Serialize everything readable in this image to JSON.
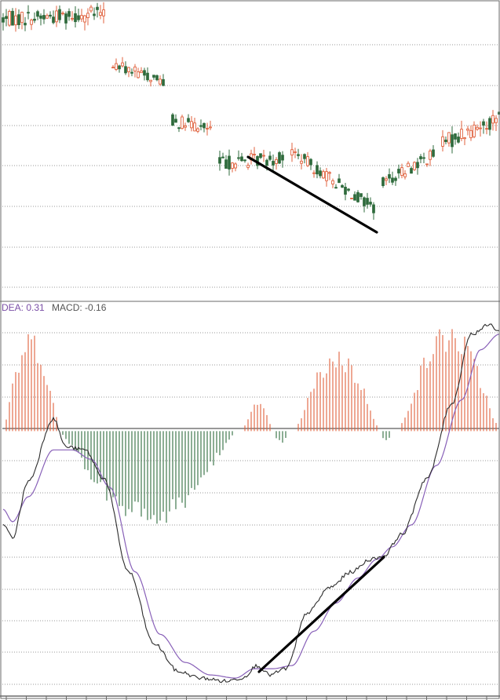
{
  "colors": {
    "background": "#ffffff",
    "frame": "#6a6a6a",
    "grid": "#9a9a9a",
    "up": "#e0603c",
    "down": "#2f6b3c",
    "dif_line": "#2b2b2b",
    "dea_line": "#8860b8",
    "legend_text": "#7a4ea6",
    "trend_line": "#000000"
  },
  "legend": {
    "dea": "DEA: 0.31",
    "macd": "MACD: -0.16"
  },
  "chart_data": [
    {
      "type": "candlestick",
      "title": "",
      "grid": true,
      "segments": [
        {
          "count": 33,
          "base": 96,
          "end": 98,
          "wiggle": 1.2
        },
        {
          "count": 17,
          "base": 80,
          "end": 74,
          "wiggle": 0.9
        },
        {
          "count": 13,
          "base": 60,
          "end": 57,
          "wiggle": 1.0
        },
        {
          "count": 21,
          "base": 45,
          "end": 47,
          "wiggle": 1.1
        },
        {
          "count": 27,
          "base": 49,
          "end": 29,
          "wiggle": 1.0
        },
        {
          "count": 17,
          "base": 38,
          "end": 48,
          "wiggle": 1.0
        },
        {
          "count": 28,
          "base": 52,
          "end": 66,
          "wiggle": 1.3
        }
      ],
      "ylim": [
        0,
        100
      ]
    },
    {
      "type": "bar+line",
      "title": "",
      "grid": true,
      "series": [
        {
          "name": "DEA",
          "line": "dea"
        },
        {
          "name": "MACD",
          "line": "dif"
        }
      ],
      "macd_histogram_peaks": [
        {
          "start": 0,
          "end": 18,
          "peak": 2.8
        },
        {
          "start": 18,
          "end": 74,
          "peak": -2.8
        },
        {
          "start": 76,
          "end": 86,
          "peak": 0.8
        },
        {
          "start": 86,
          "end": 91,
          "peak": -0.35
        },
        {
          "start": 93,
          "end": 120,
          "peak": 2.3
        },
        {
          "start": 120,
          "end": 124,
          "peak": -0.3
        },
        {
          "start": 126,
          "end": 158,
          "peak": 3.0
        }
      ],
      "dif_knots": [
        [
          0,
          -3.0
        ],
        [
          3,
          -3.4
        ],
        [
          8,
          -1.6
        ],
        [
          16,
          0.4
        ],
        [
          20,
          -0.5
        ],
        [
          26,
          -0.6
        ],
        [
          32,
          -1.5
        ],
        [
          40,
          -4.5
        ],
        [
          48,
          -6.8
        ],
        [
          56,
          -7.7
        ],
        [
          63,
          -7.9
        ],
        [
          71,
          -8.0
        ],
        [
          76,
          -7.9
        ],
        [
          81,
          -7.5
        ],
        [
          85,
          -7.8
        ],
        [
          90,
          -7.6
        ],
        [
          97,
          -5.8
        ],
        [
          104,
          -5.0
        ],
        [
          111,
          -4.5
        ],
        [
          117,
          -4.1
        ],
        [
          121,
          -4.0
        ],
        [
          127,
          -3.3
        ],
        [
          135,
          -1.5
        ],
        [
          143,
          0.9
        ],
        [
          149,
          3.1
        ],
        [
          155,
          3.4
        ],
        [
          158,
          3.2
        ]
      ],
      "dea_knots": [
        [
          0,
          -2.5
        ],
        [
          3,
          -2.9
        ],
        [
          8,
          -2.1
        ],
        [
          16,
          -0.6
        ],
        [
          22,
          -0.6
        ],
        [
          28,
          -0.9
        ],
        [
          34,
          -1.8
        ],
        [
          42,
          -4.5
        ],
        [
          50,
          -6.5
        ],
        [
          58,
          -7.4
        ],
        [
          66,
          -7.8
        ],
        [
          74,
          -7.9
        ],
        [
          80,
          -7.6
        ],
        [
          86,
          -7.6
        ],
        [
          92,
          -7.5
        ],
        [
          99,
          -6.4
        ],
        [
          106,
          -5.5
        ],
        [
          113,
          -4.7
        ],
        [
          119,
          -4.1
        ],
        [
          124,
          -3.7
        ],
        [
          130,
          -3.0
        ],
        [
          138,
          -1.1
        ],
        [
          146,
          1.0
        ],
        [
          152,
          2.6
        ],
        [
          158,
          3.1
        ]
      ],
      "ylim": [
        -8.3,
        3.8
      ]
    }
  ]
}
